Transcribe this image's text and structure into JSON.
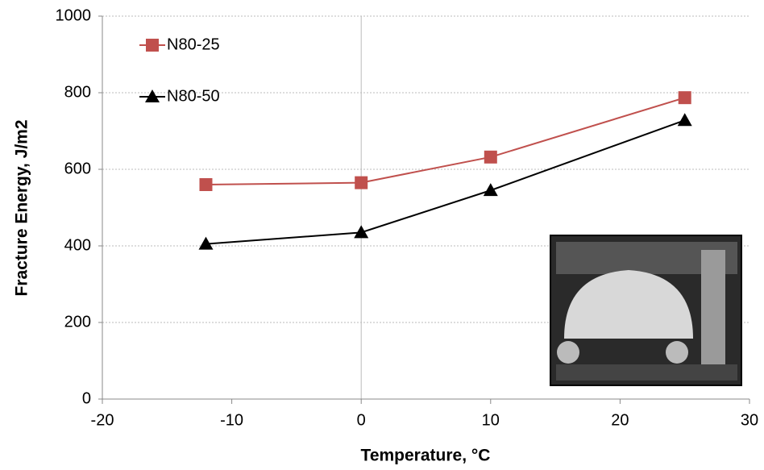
{
  "chart_data": {
    "type": "line",
    "x_label": "Temperature, °C",
    "y_label": "Fracture Energy, J/m2",
    "series": [
      {
        "name": "N80-25",
        "color": "#c0504d",
        "marker": "square",
        "x": [
          -12,
          0,
          10,
          25
        ],
        "values": [
          560,
          565,
          632,
          787
        ]
      },
      {
        "name": "N80-50",
        "color": "#000000",
        "marker": "triangle",
        "x": [
          -12,
          0,
          10,
          25
        ],
        "values": [
          405,
          435,
          545,
          728
        ]
      }
    ],
    "xlim": [
      -20,
      30
    ],
    "xticks": [
      -20,
      -10,
      0,
      10,
      20,
      30
    ],
    "ylim": [
      0,
      1000
    ],
    "yticks": [
      0,
      200,
      400,
      600,
      800,
      1000
    ],
    "grid": true,
    "legend": "upper left"
  }
}
